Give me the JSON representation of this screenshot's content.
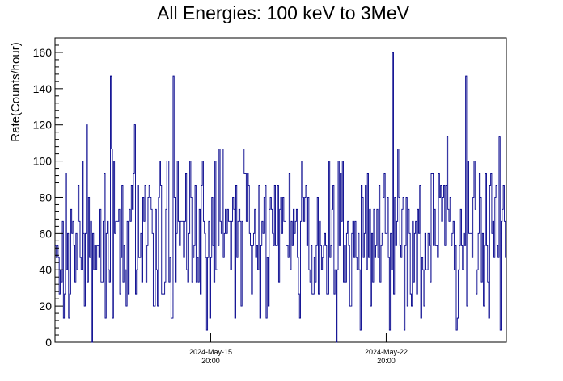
{
  "chart_data": {
    "type": "line",
    "title": "All Energies:  100 keV to 3MeV",
    "ylabel": "Rate(Counts/hour)",
    "xlabel": "",
    "ylim": [
      0,
      168
    ],
    "yticks": [
      0,
      20,
      40,
      60,
      80,
      100,
      120,
      140,
      160
    ],
    "y_minor_step": 4,
    "x_start": "2024-05-09 15:00",
    "x_end": "2024-05-27 15:00",
    "xticks": [
      {
        "date": "2024-05-15 20:00",
        "line1": "2024-May-15",
        "line2": "20:00"
      },
      {
        "date": "2024-05-22 20:00",
        "line1": "2024-May-22",
        "line2": "20:00"
      }
    ],
    "series": [
      {
        "name": "",
        "color": "#00008b",
        "interval": "hourly",
        "approx_mean": 58,
        "approx_std": 24,
        "y_min": 0,
        "y_max": 160,
        "peaks": [
          {
            "date": "2024-05-23 02:00",
            "value": 160
          },
          {
            "date": "2024-05-11 20:00",
            "value": 147
          },
          {
            "date": "2024-05-14 08:00",
            "value": 147
          },
          {
            "date": "2024-05-26 00:00",
            "value": 147
          }
        ],
        "zero_dips": [
          {
            "date": "2024-05-11 02:00",
            "value": 0
          },
          {
            "date": "2024-05-20 20:00",
            "value": 0
          }
        ]
      }
    ],
    "grid": false,
    "legend": "none"
  }
}
